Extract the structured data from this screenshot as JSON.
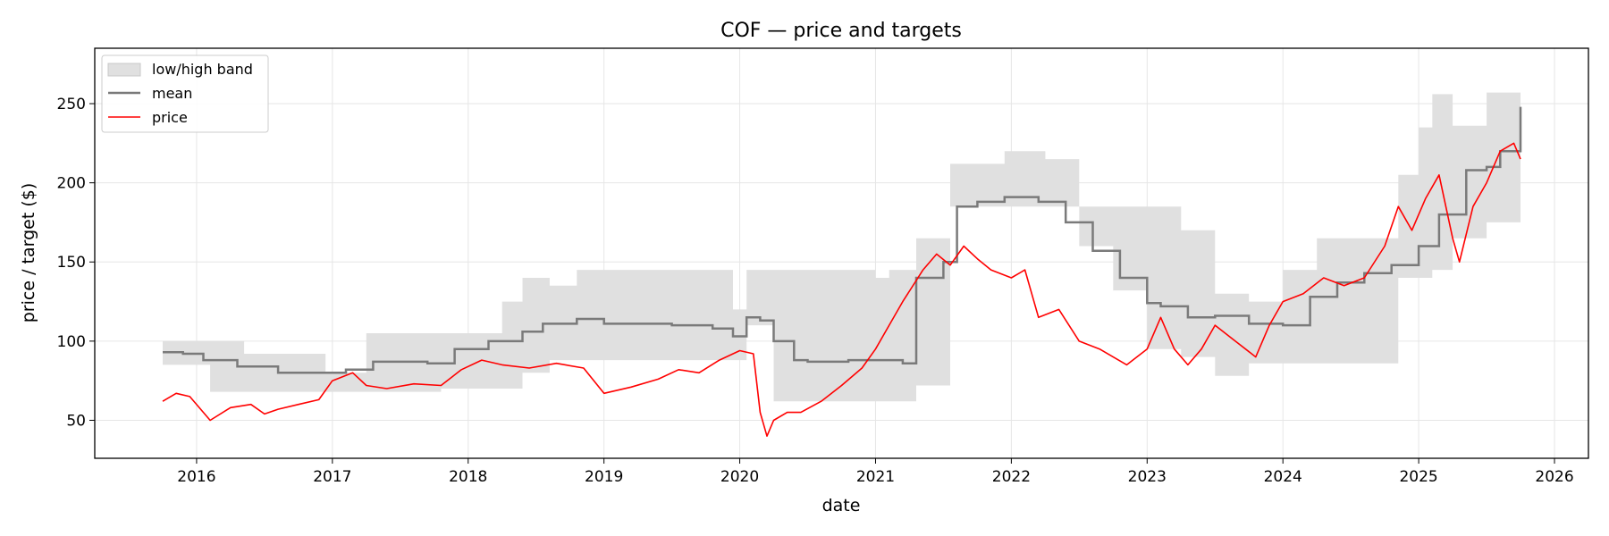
{
  "chart_data": {
    "type": "line",
    "title": "COF — price and targets",
    "xlabel": "date",
    "ylabel": "price / target ($)",
    "xlim": [
      2015.25,
      2026.25
    ],
    "ylim": [
      26,
      285
    ],
    "grid": true,
    "legend_position": "top-left",
    "x_ticks": [
      2016,
      2017,
      2018,
      2019,
      2020,
      2021,
      2022,
      2023,
      2024,
      2025,
      2026
    ],
    "x_tick_labels": [
      "2016",
      "2017",
      "2018",
      "2019",
      "2020",
      "2021",
      "2022",
      "2023",
      "2024",
      "2025",
      "2026"
    ],
    "y_ticks": [
      50,
      100,
      150,
      200,
      250
    ],
    "y_tick_labels": [
      "50",
      "100",
      "150",
      "200",
      "250"
    ],
    "legend": [
      {
        "name": "low/high band",
        "kind": "band",
        "color": "#e0e0e0"
      },
      {
        "name": "mean",
        "kind": "line",
        "color": "#7a7a7a"
      },
      {
        "name": "price",
        "kind": "line",
        "color": "#ff0000"
      }
    ],
    "series": [
      {
        "name": "low/high band",
        "kind": "band",
        "color": "#e0e0e0",
        "x": [
          2015.75,
          2015.95,
          2016.1,
          2016.35,
          2016.75,
          2016.95,
          2017.25,
          2017.8,
          2018.25,
          2018.4,
          2018.6,
          2018.8,
          2019.2,
          2019.6,
          2019.95,
          2020.05,
          2020.25,
          2020.5,
          2020.8,
          2021.0,
          2021.1,
          2021.3,
          2021.55,
          2021.65,
          2021.95,
          2022.25,
          2022.5,
          2022.75,
          2023.0,
          2023.25,
          2023.5,
          2023.75,
          2024.0,
          2024.25,
          2024.5,
          2024.75,
          2024.85,
          2025.0,
          2025.1,
          2025.25,
          2025.5,
          2025.75
        ],
        "low": [
          85,
          85,
          68,
          68,
          68,
          68,
          68,
          70,
          70,
          80,
          88,
          88,
          88,
          88,
          88,
          110,
          62,
          62,
          62,
          62,
          62,
          72,
          185,
          185,
          185,
          185,
          160,
          132,
          95,
          90,
          78,
          86,
          86,
          86,
          86,
          86,
          140,
          140,
          145,
          165,
          175,
          183
        ],
        "high": [
          100,
          100,
          100,
          92,
          92,
          80,
          105,
          105,
          125,
          140,
          135,
          145,
          145,
          145,
          120,
          145,
          145,
          145,
          145,
          140,
          145,
          165,
          212,
          212,
          220,
          215,
          185,
          185,
          185,
          170,
          130,
          125,
          145,
          165,
          165,
          165,
          205,
          235,
          256,
          236,
          257,
          275
        ]
      },
      {
        "name": "mean",
        "kind": "line",
        "color": "#7a7a7a",
        "x": [
          2015.75,
          2015.9,
          2016.05,
          2016.3,
          2016.6,
          2016.85,
          2017.1,
          2017.3,
          2017.7,
          2017.9,
          2018.15,
          2018.4,
          2018.55,
          2018.8,
          2019.0,
          2019.5,
          2019.8,
          2019.95,
          2020.05,
          2020.15,
          2020.25,
          2020.4,
          2020.5,
          2020.8,
          2021.0,
          2021.2,
          2021.3,
          2021.5,
          2021.6,
          2021.75,
          2021.95,
          2022.2,
          2022.4,
          2022.6,
          2022.8,
          2023.0,
          2023.1,
          2023.3,
          2023.5,
          2023.75,
          2024.0,
          2024.2,
          2024.4,
          2024.6,
          2024.8,
          2025.0,
          2025.15,
          2025.35,
          2025.5,
          2025.6,
          2025.75
        ],
        "values": [
          93,
          92,
          88,
          84,
          80,
          80,
          82,
          87,
          86,
          95,
          100,
          106,
          111,
          114,
          111,
          110,
          108,
          103,
          115,
          113,
          100,
          88,
          87,
          88,
          88,
          86,
          140,
          150,
          185,
          188,
          191,
          188,
          175,
          157,
          140,
          124,
          122,
          115,
          116,
          111,
          110,
          128,
          137,
          143,
          148,
          160,
          180,
          208,
          210,
          220,
          248
        ]
      },
      {
        "name": "price",
        "kind": "line",
        "color": "#ff0000",
        "x": [
          2015.75,
          2015.85,
          2015.95,
          2016.05,
          2016.1,
          2016.25,
          2016.4,
          2016.5,
          2016.6,
          2016.75,
          2016.9,
          2017.0,
          2017.15,
          2017.25,
          2017.4,
          2017.6,
          2017.8,
          2017.95,
          2018.1,
          2018.25,
          2018.45,
          2018.65,
          2018.85,
          2019.0,
          2019.2,
          2019.4,
          2019.55,
          2019.7,
          2019.85,
          2020.0,
          2020.1,
          2020.15,
          2020.2,
          2020.25,
          2020.35,
          2020.45,
          2020.6,
          2020.75,
          2020.9,
          2021.0,
          2021.1,
          2021.2,
          2021.35,
          2021.45,
          2021.55,
          2021.65,
          2021.75,
          2021.85,
          2022.0,
          2022.1,
          2022.2,
          2022.35,
          2022.5,
          2022.65,
          2022.75,
          2022.85,
          2023.0,
          2023.1,
          2023.2,
          2023.3,
          2023.4,
          2023.5,
          2023.65,
          2023.8,
          2023.9,
          2024.0,
          2024.15,
          2024.3,
          2024.45,
          2024.6,
          2024.75,
          2024.85,
          2024.95,
          2025.05,
          2025.15,
          2025.25,
          2025.3,
          2025.4,
          2025.5,
          2025.6,
          2025.7,
          2025.75
        ],
        "values": [
          62,
          67,
          65,
          55,
          50,
          58,
          60,
          54,
          57,
          60,
          63,
          75,
          80,
          72,
          70,
          73,
          72,
          82,
          88,
          85,
          83,
          86,
          83,
          67,
          71,
          76,
          82,
          80,
          88,
          94,
          92,
          55,
          40,
          50,
          55,
          55,
          62,
          72,
          83,
          95,
          110,
          125,
          145,
          155,
          148,
          160,
          152,
          145,
          140,
          145,
          115,
          120,
          100,
          95,
          90,
          85,
          95,
          115,
          95,
          85,
          95,
          110,
          100,
          90,
          110,
          125,
          130,
          140,
          135,
          140,
          160,
          185,
          170,
          190,
          205,
          165,
          150,
          185,
          200,
          220,
          225,
          215
        ]
      }
    ]
  }
}
